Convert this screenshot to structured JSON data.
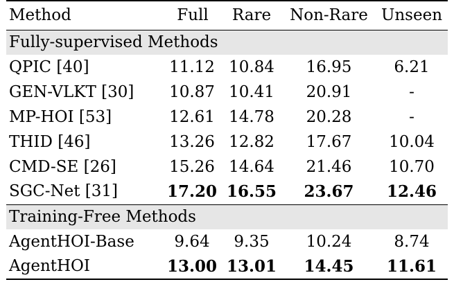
{
  "table": {
    "headers": [
      "Method",
      "Full",
      "Rare",
      "Non-Rare",
      "Unseen"
    ],
    "sections": [
      {
        "title": "Fully-supervised Methods",
        "rows": [
          {
            "method": "QPIC [40]",
            "full": "11.12",
            "rare": "10.84",
            "nonrare": "16.95",
            "unseen": "6.21",
            "bold": false
          },
          {
            "method": "GEN-VLKT [30]",
            "full": "10.87",
            "rare": "10.41",
            "nonrare": "20.91",
            "unseen": "-",
            "bold": false
          },
          {
            "method": "MP-HOI [53]",
            "full": "12.61",
            "rare": "14.78",
            "nonrare": "20.28",
            "unseen": "-",
            "bold": false
          },
          {
            "method": "THID [46]",
            "full": "13.26",
            "rare": "12.82",
            "nonrare": "17.67",
            "unseen": "10.04",
            "bold": false
          },
          {
            "method": "CMD-SE [26]",
            "full": "15.26",
            "rare": "14.64",
            "nonrare": "21.46",
            "unseen": "10.70",
            "bold": false
          },
          {
            "method": "SGC-Net [31]",
            "full": "17.20",
            "rare": "16.55",
            "nonrare": "23.67",
            "unseen": "12.46",
            "bold": true
          }
        ]
      },
      {
        "title": "Training-Free Methods",
        "rows": [
          {
            "method": "AgentHOI-Base",
            "full": "9.64",
            "rare": "9.35",
            "nonrare": "10.24",
            "unseen": "8.74",
            "bold": false
          },
          {
            "method": "AgentHOI",
            "full": "13.00",
            "rare": "13.01",
            "nonrare": "14.45",
            "unseen": "11.61",
            "bold": true
          }
        ]
      }
    ]
  }
}
